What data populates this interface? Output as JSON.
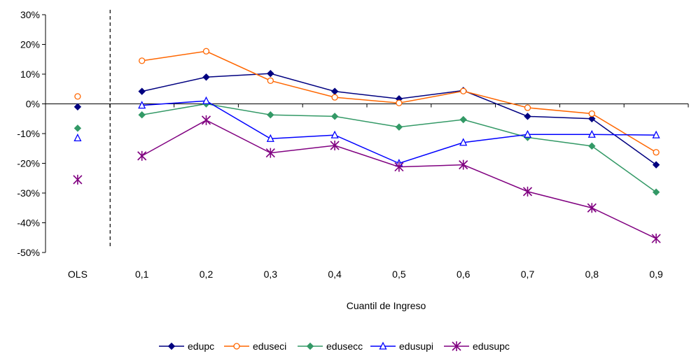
{
  "chart_data": {
    "type": "line",
    "xlabel": "Cuantil de Ingreso",
    "ylabel": "",
    "categories": [
      "OLS",
      "0,1",
      "0,2",
      "0,3",
      "0,4",
      "0,5",
      "0,6",
      "0,7",
      "0,8",
      "0,9"
    ],
    "ylim": [
      -50,
      30
    ],
    "yticks": [
      30,
      20,
      10,
      0,
      -10,
      -20,
      -30,
      -40,
      -50
    ],
    "ytick_labels": [
      "30%",
      "20%",
      "10%",
      "0%",
      "-10%",
      "-20%",
      "-30%",
      "-40%",
      "-50%"
    ],
    "grid": false,
    "separator_after_category": "OLS",
    "legend_position": "bottom",
    "series": [
      {
        "name": "edupc",
        "color": "#000080",
        "marker": "diamond",
        "fill": true,
        "values": [
          -1,
          4.2,
          9,
          10.2,
          4.2,
          1.7,
          4.5,
          -4.2,
          -5,
          -20.5
        ]
      },
      {
        "name": "eduseci",
        "color": "#FF6600",
        "marker": "circle",
        "fill": false,
        "values": [
          2.5,
          14.5,
          17.7,
          7.8,
          2.2,
          0.3,
          4.3,
          -1.3,
          -3.3,
          -16.3
        ]
      },
      {
        "name": "edusecc",
        "color": "#339966",
        "marker": "diamond",
        "fill": true,
        "values": [
          -8.2,
          -3.7,
          0,
          -3.7,
          -4.2,
          -7.8,
          -5.3,
          -11.3,
          -14.2,
          -29.7
        ]
      },
      {
        "name": "edusupi",
        "color": "#0000FF",
        "marker": "triangle",
        "fill": false,
        "values": [
          -11.5,
          -0.5,
          1,
          -11.7,
          -10.5,
          -20,
          -13,
          -10.3,
          -10.3,
          -10.5
        ]
      },
      {
        "name": "edusupc",
        "color": "#800080",
        "marker": "asterisk",
        "fill": false,
        "values": [
          -25.5,
          -17.5,
          -5.5,
          -16.5,
          -14,
          -21.2,
          -20.5,
          -29.5,
          -35,
          -45.3
        ]
      }
    ]
  }
}
